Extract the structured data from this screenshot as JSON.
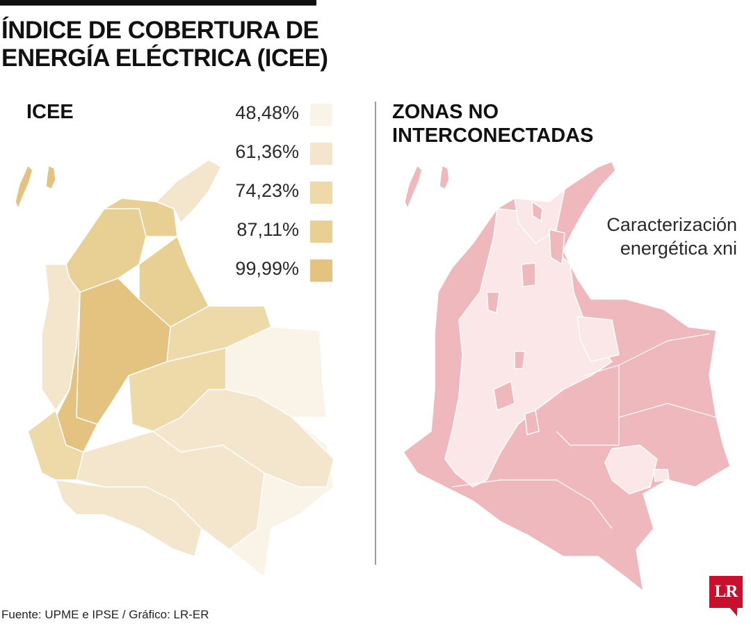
{
  "title_line1": "ÍNDICE DE COBERTURA DE",
  "title_line2": "ENERGÍA ELÉCTRICA (ICEE)",
  "icee_panel": {
    "label": "ICEE",
    "legend": [
      {
        "label": "48,48%",
        "color": "#faf3e8"
      },
      {
        "label": "61,36%",
        "color": "#f3e6cc"
      },
      {
        "label": "74,23%",
        "color": "#eedaa9"
      },
      {
        "label": "87,11%",
        "color": "#e8cf93"
      },
      {
        "label": "99,99%",
        "color": "#e3c37f"
      }
    ]
  },
  "zni_panel": {
    "label_line1": "ZONAS NO",
    "label_line2": "INTERCONECTADAS",
    "annotation_line1": "Caracterización",
    "annotation_line2": "energética xni",
    "zni_color": "#efb8bd",
    "interconnected_color": "#fbe7e7"
  },
  "source": "Fuente: UPME e IPSE / Gráfico: LR-ER",
  "logo_text": "LR"
}
